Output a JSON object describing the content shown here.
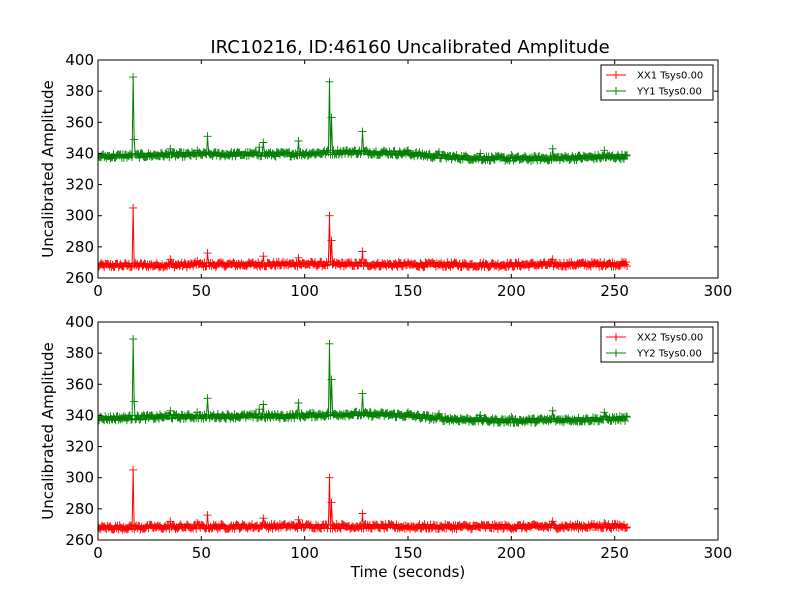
{
  "title": "IRC10216, ID:46160 Uncalibrated Amplitude",
  "chart_data": [
    {
      "type": "line",
      "ylabel": "Uncalibrated Amplitude",
      "xlabel": "",
      "xlim": [
        0,
        300
      ],
      "ylim": [
        260,
        400
      ],
      "xticks": [
        0,
        50,
        100,
        150,
        200,
        250,
        300
      ],
      "yticks": [
        260,
        280,
        300,
        320,
        340,
        360,
        380,
        400
      ],
      "grid": false,
      "legend_position": "top-right",
      "series": [
        {
          "name": "XX1 Tsys0.00",
          "color": "#ff0000",
          "baseline": [
            [
              0,
              268
            ],
            [
              50,
              268.5
            ],
            [
              100,
              269
            ],
            [
              150,
              268.5
            ],
            [
              200,
              268.5
            ],
            [
              256,
              269
            ]
          ],
          "spikes": [
            [
              17,
              305
            ],
            [
              35,
              272
            ],
            [
              48,
              271
            ],
            [
              53,
              276
            ],
            [
              80,
              274
            ],
            [
              97,
              273
            ],
            [
              112,
              300
            ],
            [
              113,
              284
            ],
            [
              128,
              277
            ],
            [
              220,
              272
            ],
            [
              245,
              270
            ]
          ]
        },
        {
          "name": "YY1 Tsys0.00",
          "color": "#008000",
          "baseline": [
            [
              0,
              338
            ],
            [
              30,
              339
            ],
            [
              60,
              339.5
            ],
            [
              90,
              339.5
            ],
            [
              120,
              341
            ],
            [
              140,
              340.5
            ],
            [
              150,
              340
            ],
            [
              165,
              338
            ],
            [
              185,
              337
            ],
            [
              200,
              336.5
            ],
            [
              220,
              337
            ],
            [
              256,
              338
            ]
          ],
          "spikes": [
            [
              17,
              389
            ],
            [
              17.5,
              349
            ],
            [
              35,
              343
            ],
            [
              48,
              342
            ],
            [
              53,
              351
            ],
            [
              78,
              344
            ],
            [
              80,
              347
            ],
            [
              97,
              348
            ],
            [
              112,
              386
            ],
            [
              113,
              363
            ],
            [
              128,
              354
            ],
            [
              150,
              342
            ],
            [
              165,
              341
            ],
            [
              185,
              340
            ],
            [
              200,
              339
            ],
            [
              220,
              343
            ],
            [
              245,
              342
            ]
          ]
        }
      ]
    },
    {
      "type": "line",
      "ylabel": "Uncalibrated Amplitude",
      "xlabel": "Time (seconds)",
      "xlim": [
        0,
        300
      ],
      "ylim": [
        260,
        400
      ],
      "xticks": [
        0,
        50,
        100,
        150,
        200,
        250,
        300
      ],
      "yticks": [
        260,
        280,
        300,
        320,
        340,
        360,
        380,
        400
      ],
      "grid": false,
      "legend_position": "top-right",
      "series": [
        {
          "name": "XX2 Tsys0.00",
          "color": "#ff0000",
          "baseline": [
            [
              0,
              268
            ],
            [
              50,
              268.5
            ],
            [
              100,
              269
            ],
            [
              150,
              268.5
            ],
            [
              200,
              268.5
            ],
            [
              256,
              269
            ]
          ],
          "spikes": [
            [
              17,
              305
            ],
            [
              35,
              272
            ],
            [
              48,
              271
            ],
            [
              53,
              276
            ],
            [
              80,
              274
            ],
            [
              97,
              273
            ],
            [
              112,
              300
            ],
            [
              113,
              284
            ],
            [
              128,
              277
            ],
            [
              220,
              272
            ],
            [
              245,
              271
            ]
          ]
        },
        {
          "name": "YY2 Tsys0.00",
          "color": "#008000",
          "baseline": [
            [
              0,
              338
            ],
            [
              30,
              339
            ],
            [
              60,
              339.5
            ],
            [
              90,
              339.5
            ],
            [
              120,
              341
            ],
            [
              140,
              340.5
            ],
            [
              150,
              340
            ],
            [
              165,
              338
            ],
            [
              185,
              337
            ],
            [
              200,
              336.5
            ],
            [
              220,
              337
            ],
            [
              256,
              338
            ]
          ],
          "spikes": [
            [
              17,
              389
            ],
            [
              17.5,
              349
            ],
            [
              35,
              343
            ],
            [
              48,
              342
            ],
            [
              53,
              351
            ],
            [
              78,
              344
            ],
            [
              80,
              347
            ],
            [
              97,
              348
            ],
            [
              112,
              386
            ],
            [
              113,
              363
            ],
            [
              128,
              354
            ],
            [
              150,
              342
            ],
            [
              165,
              341
            ],
            [
              185,
              340
            ],
            [
              200,
              339
            ],
            [
              220,
              343
            ],
            [
              245,
              342
            ]
          ]
        }
      ]
    }
  ]
}
